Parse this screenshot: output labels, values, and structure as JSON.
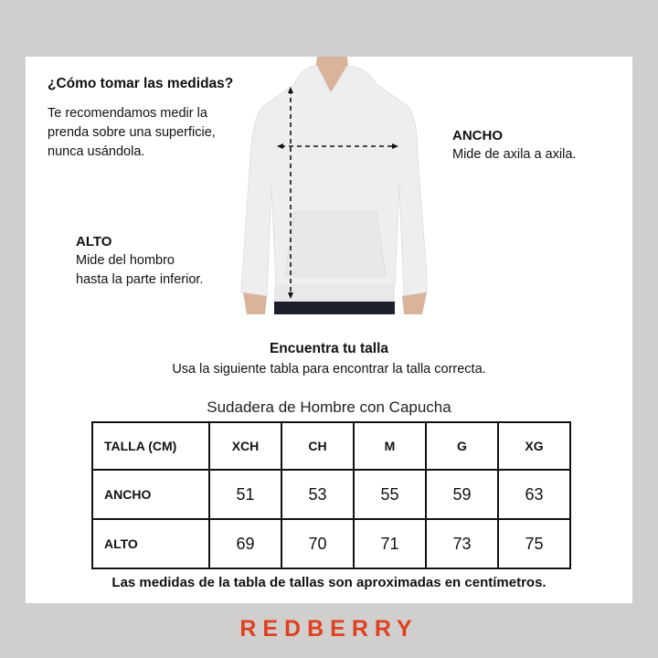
{
  "guide": {
    "title": "¿Cómo tomar las medidas?",
    "intro": [
      "Te recomendamos medir la",
      "prenda sobre una superficie,",
      "nunca usándola."
    ]
  },
  "ancho": {
    "label": "ANCHO",
    "desc": "Mide de axila a axila."
  },
  "alto": {
    "label": "ALTO",
    "desc": [
      "Mide del hombro",
      "hasta la parte inferior."
    ]
  },
  "find": {
    "title": "Encuentra tu talla",
    "subtitle": "Usa la siguiente tabla para encontrar la talla correcta."
  },
  "table": {
    "caption": "Sudadera de Hombre con Capucha",
    "header": [
      "TALLA (CM)",
      "XCH",
      "CH",
      "M",
      "G",
      "XG"
    ],
    "rows": [
      {
        "label": "ANCHO",
        "values": [
          "51",
          "53",
          "55",
          "59",
          "63"
        ]
      },
      {
        "label": "ALTO",
        "values": [
          "69",
          "70",
          "71",
          "73",
          "75"
        ]
      }
    ]
  },
  "note": "Las medidas de la tabla de tallas son aproximadas en centímetros.",
  "brand": {
    "name": "REDBERRY",
    "color": "#e0401f"
  }
}
